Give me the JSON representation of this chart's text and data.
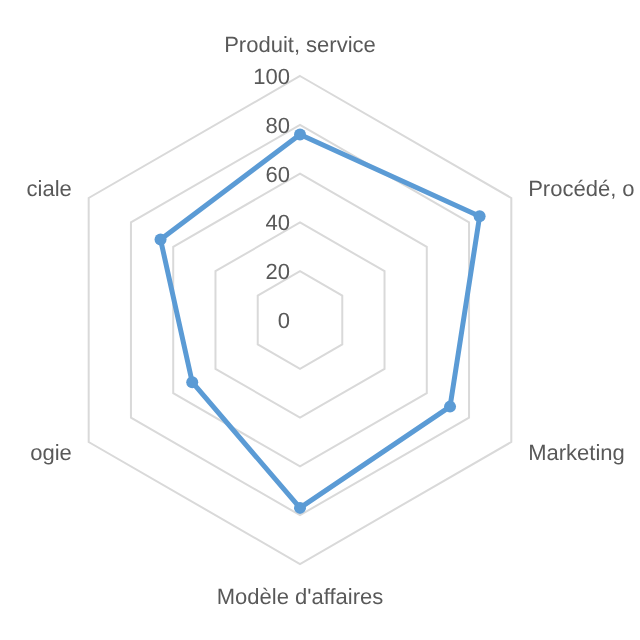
{
  "chart_data": {
    "type": "radar",
    "categories": [
      "Produit, service",
      "Procédé, o",
      "Marketing",
      "Modèle d'affaires",
      "ogie",
      "ciale"
    ],
    "series": [
      {
        "color": "#5b9bd5",
        "values": [
          76,
          85,
          71,
          77,
          51,
          66
        ]
      }
    ],
    "ylim": [
      0,
      100
    ],
    "yticks": [
      0,
      20,
      40,
      60,
      80,
      100
    ],
    "grid": true,
    "marker": "circle"
  }
}
